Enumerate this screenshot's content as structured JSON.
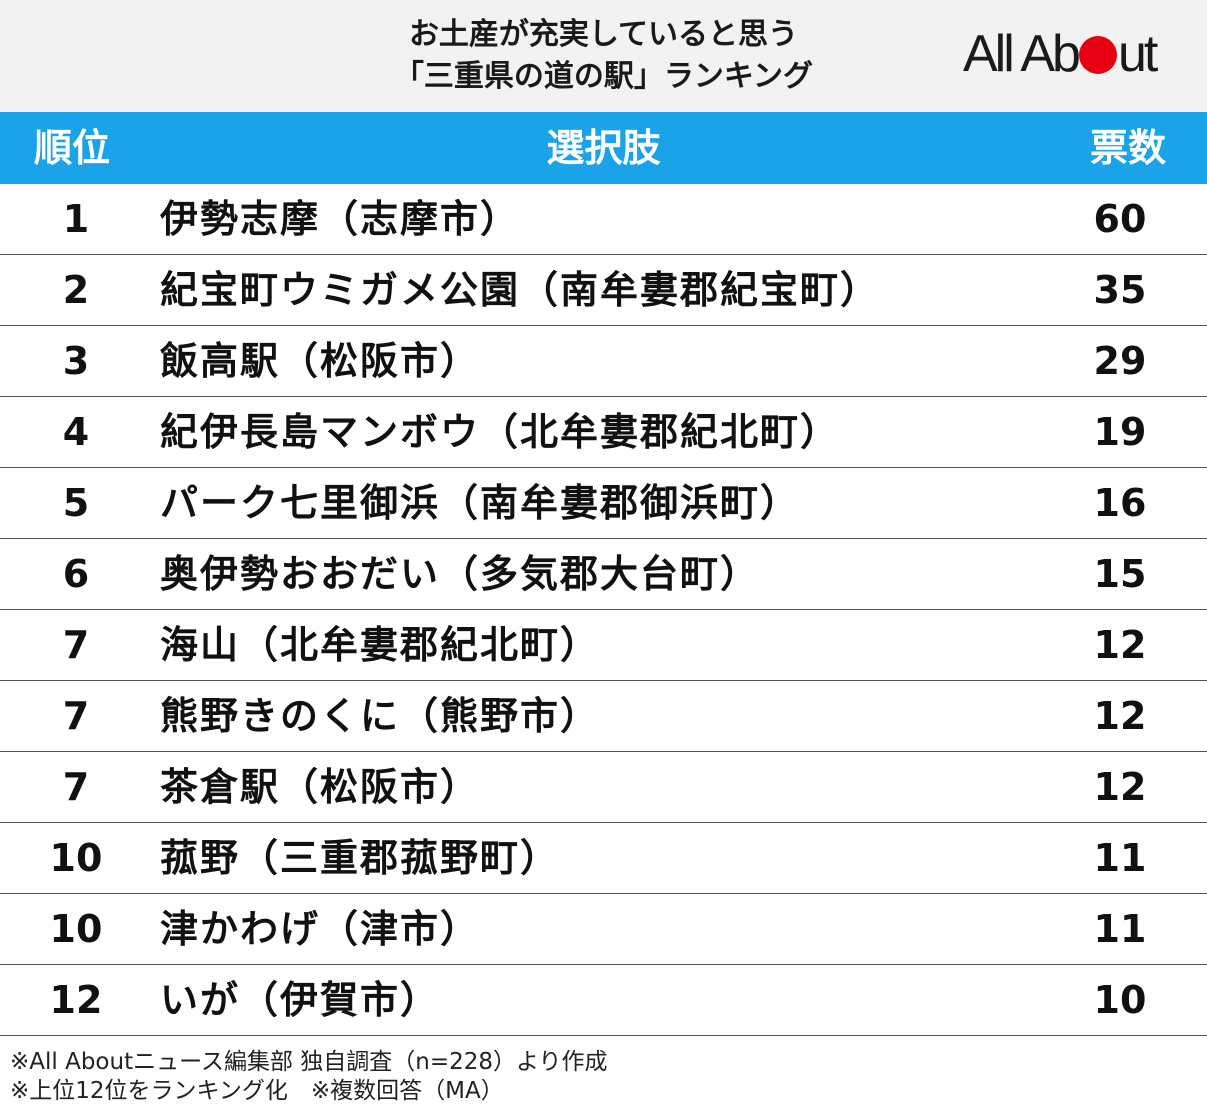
{
  "header": {
    "title_line1": "お土産が充実していると思う",
    "title_line2": "「三重県の道の駅」ランキング",
    "logo_text_1": "All Ab",
    "logo_text_2": "ut",
    "logo_accent_color": "#e60012"
  },
  "colors": {
    "header_band": "#1aa3e8"
  },
  "chart_data": {
    "type": "table",
    "columns": [
      "順位",
      "選択肢",
      "票数"
    ],
    "rows": [
      {
        "rank": "1",
        "name": "伊勢志摩（志摩市）",
        "votes": "60"
      },
      {
        "rank": "2",
        "name": "紀宝町ウミガメ公園（南牟婁郡紀宝町）",
        "votes": "35"
      },
      {
        "rank": "3",
        "name": "飯高駅（松阪市）",
        "votes": "29"
      },
      {
        "rank": "4",
        "name": "紀伊長島マンボウ（北牟婁郡紀北町）",
        "votes": "19"
      },
      {
        "rank": "5",
        "name": "パーク七里御浜（南牟婁郡御浜町）",
        "votes": "16"
      },
      {
        "rank": "6",
        "name": "奥伊勢おおだい（多気郡大台町）",
        "votes": "15"
      },
      {
        "rank": "7",
        "name": "海山（北牟婁郡紀北町）",
        "votes": "12"
      },
      {
        "rank": "7",
        "name": "熊野きのくに（熊野市）",
        "votes": "12"
      },
      {
        "rank": "7",
        "name": "茶倉駅（松阪市）",
        "votes": "12"
      },
      {
        "rank": "10",
        "name": "菰野（三重郡菰野町）",
        "votes": "11"
      },
      {
        "rank": "10",
        "name": "津かわげ（津市）",
        "votes": "11"
      },
      {
        "rank": "12",
        "name": "いが（伊賀市）",
        "votes": "10"
      }
    ]
  },
  "footer": {
    "line1": "※All Aboutニュース編集部 独自調査（n=228）より作成",
    "line2": "※上位12位をランキング化　※複数回答（MA）"
  }
}
